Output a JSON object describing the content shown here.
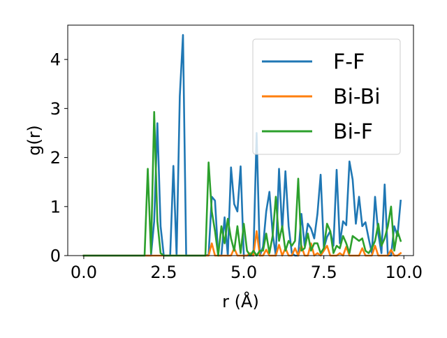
{
  "chart_data": {
    "type": "line",
    "title": "",
    "xlabel": "r (Å)",
    "ylabel": "g(r)",
    "xlim": [
      -0.5,
      10.3
    ],
    "ylim": [
      0,
      4.7
    ],
    "xticks": [
      0.0,
      2.5,
      5.0,
      7.5,
      10.0
    ],
    "xtick_labels": [
      "0.0",
      "2.5",
      "5.0",
      "7.5",
      "10.0"
    ],
    "yticks": [
      0,
      1,
      2,
      3,
      4
    ],
    "ytick_labels": [
      "0",
      "1",
      "2",
      "3",
      "4"
    ],
    "grid": false,
    "legend_position": "upper right",
    "x": [
      0.0,
      0.1,
      0.2,
      0.3,
      0.4,
      0.5,
      0.6,
      0.7,
      0.8,
      0.9,
      1.0,
      1.1,
      1.2,
      1.3,
      1.4,
      1.5,
      1.6,
      1.7,
      1.8,
      1.9,
      2.0,
      2.1,
      2.2,
      2.3,
      2.4,
      2.5,
      2.6,
      2.7,
      2.8,
      2.9,
      3.0,
      3.1,
      3.2,
      3.3,
      3.4,
      3.5,
      3.6,
      3.7,
      3.8,
      3.9,
      4.0,
      4.1,
      4.2,
      4.3,
      4.4,
      4.5,
      4.6,
      4.7,
      4.8,
      4.9,
      5.0,
      5.1,
      5.2,
      5.3,
      5.4,
      5.5,
      5.6,
      5.7,
      5.8,
      5.9,
      6.0,
      6.1,
      6.2,
      6.3,
      6.4,
      6.5,
      6.6,
      6.7,
      6.8,
      6.9,
      7.0,
      7.1,
      7.2,
      7.3,
      7.4,
      7.5,
      7.6,
      7.7,
      7.8,
      7.9,
      8.0,
      8.1,
      8.2,
      8.3,
      8.4,
      8.5,
      8.6,
      8.7,
      8.8,
      8.9,
      9.0,
      9.1,
      9.2,
      9.3,
      9.4,
      9.5,
      9.6,
      9.7,
      9.8,
      9.9
    ],
    "series": [
      {
        "name": "F-F",
        "color": "#1f77b4",
        "values": [
          0,
          0,
          0,
          0,
          0,
          0,
          0,
          0,
          0,
          0,
          0,
          0,
          0,
          0,
          0,
          0,
          0,
          0,
          0,
          0,
          0,
          0,
          0.7,
          2.7,
          0.6,
          0,
          0,
          0,
          1.83,
          0,
          3.25,
          4.5,
          0,
          0,
          0,
          0,
          0,
          0,
          0,
          0.02,
          1.2,
          1.12,
          0,
          0,
          0.78,
          0,
          1.8,
          1.05,
          0.9,
          1.82,
          0,
          0,
          0,
          0,
          2.5,
          0,
          0.18,
          0.9,
          1.3,
          0.45,
          0,
          1.77,
          0.5,
          1.72,
          0.6,
          0.05,
          0,
          0,
          0.85,
          0.2,
          0.65,
          0.55,
          0.35,
          0.85,
          1.65,
          0.15,
          0.38,
          0.5,
          0.2,
          1.75,
          0.25,
          0.7,
          0.62,
          1.92,
          1.55,
          0.65,
          1.2,
          0.6,
          0.68,
          0.35,
          0.05,
          1.2,
          0.45,
          0.05,
          1.45,
          0,
          0,
          0.6,
          0.4,
          1.12
        ]
      },
      {
        "name": "Bi-Bi",
        "color": "#ff7f0e",
        "values": [
          0,
          0,
          0,
          0,
          0,
          0,
          0,
          0,
          0,
          0,
          0,
          0,
          0,
          0,
          0,
          0,
          0,
          0,
          0,
          0,
          0,
          0,
          0,
          0,
          0,
          0,
          0,
          0,
          0,
          0,
          0,
          0,
          0,
          0,
          0,
          0,
          0,
          0,
          0,
          0,
          0.25,
          0,
          0,
          0,
          0,
          0,
          0,
          0.15,
          0,
          0,
          0,
          0,
          0.05,
          0,
          0.5,
          0,
          0,
          0.12,
          0,
          0,
          0,
          0.22,
          0,
          0.15,
          0,
          0,
          0.15,
          0,
          0.2,
          0,
          0,
          0.25,
          0,
          0.05,
          0,
          0.1,
          0.2,
          0,
          0,
          0,
          0.05,
          0,
          0.18,
          0,
          0,
          0,
          0,
          0.15,
          0,
          0,
          0,
          0.2,
          0,
          0,
          0,
          0,
          0.12,
          0,
          0,
          0.05
        ]
      },
      {
        "name": "Bi-F",
        "color": "#2ca02c",
        "values": [
          0,
          0,
          0,
          0,
          0,
          0,
          0,
          0,
          0,
          0,
          0,
          0,
          0,
          0,
          0,
          0,
          0,
          0,
          0,
          0,
          1.77,
          0.05,
          2.93,
          0.7,
          0.05,
          0,
          0,
          0,
          0,
          0,
          0,
          0,
          0,
          0,
          0,
          0,
          0,
          0,
          0,
          1.9,
          0.9,
          0.5,
          0,
          0.6,
          0.25,
          0.75,
          0.35,
          0.1,
          0.6,
          0.05,
          0.65,
          0.1,
          0,
          0.1,
          0,
          0.1,
          0.1,
          0.45,
          0.05,
          0.4,
          1.2,
          0.3,
          0.6,
          0.1,
          0.3,
          0.2,
          0.3,
          1.57,
          0.1,
          0.15,
          0.45,
          0.1,
          0.25,
          0.25,
          0.05,
          0.15,
          0.65,
          0.5,
          0.05,
          0.2,
          0.15,
          0.4,
          0.25,
          0.05,
          0.4,
          0.35,
          0.3,
          0.35,
          0.1,
          0.05,
          0.15,
          0.3,
          0.65,
          0.2,
          0.35,
          0.6,
          1.0,
          0.1,
          0.5,
          0.3
        ]
      }
    ]
  }
}
